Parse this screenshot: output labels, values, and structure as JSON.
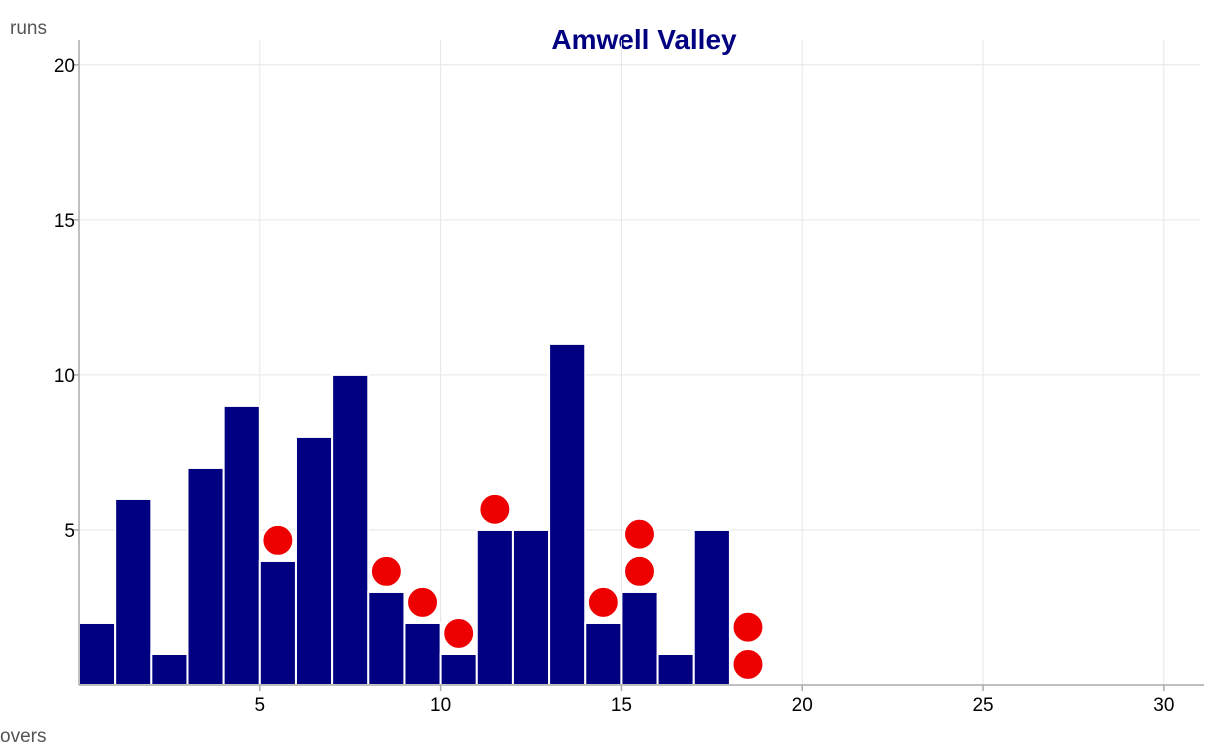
{
  "chart_data": {
    "type": "bar",
    "title": "Amwell Valley",
    "xlabel": "overs",
    "ylabel": "runs",
    "xlim": [
      0,
      31
    ],
    "ylim": [
      0,
      20.8
    ],
    "x_ticks": [
      5,
      10,
      15,
      20,
      25,
      30
    ],
    "y_ticks": [
      5,
      10,
      15,
      20
    ],
    "grid": true,
    "series": [
      {
        "x": [
          1,
          2,
          3,
          4,
          5,
          6,
          7,
          8,
          9,
          10,
          11,
          12,
          13,
          14,
          15,
          16,
          17,
          18
        ],
        "values": [
          2,
          6,
          1,
          7,
          9,
          4,
          8,
          10,
          3,
          2,
          1,
          5,
          5,
          11,
          2,
          3,
          1,
          5
        ]
      }
    ],
    "wickets": [
      {
        "over": 6,
        "count": 1
      },
      {
        "over": 9,
        "count": 1
      },
      {
        "over": 10,
        "count": 1
      },
      {
        "over": 11,
        "count": 1
      },
      {
        "over": 12,
        "count": 1
      },
      {
        "over": 15,
        "count": 1
      },
      {
        "over": 16,
        "count": 2
      },
      {
        "over": 19,
        "count": 2
      }
    ],
    "colors": {
      "bar": "#000080",
      "wicket": "#ee0000",
      "grid": "#e6e6e6",
      "axis": "#aaaaaa",
      "title": "#000080"
    }
  }
}
